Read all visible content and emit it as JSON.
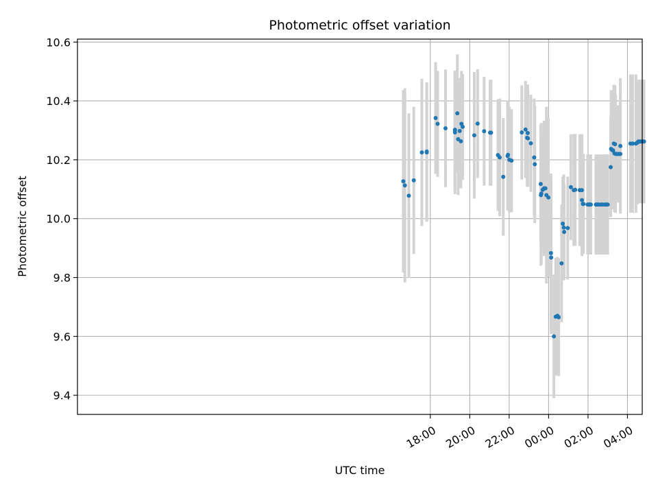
{
  "chart_data": {
    "type": "scatter",
    "title": "Photometric offset variation",
    "xlabel": "UTC time",
    "ylabel": "Photometric offset",
    "x_unit": "hours relative to 00:00 UTC",
    "xlim": [
      -23.9,
      4.75
    ],
    "ylim": [
      9.335,
      10.61
    ],
    "x_ticks": [
      {
        "value": -6,
        "label": "18:00"
      },
      {
        "value": -4,
        "label": "20:00"
      },
      {
        "value": -2,
        "label": "22:00"
      },
      {
        "value": 0,
        "label": "00:00"
      },
      {
        "value": 2,
        "label": "02:00"
      },
      {
        "value": 4,
        "label": "04:00"
      }
    ],
    "y_ticks": [
      {
        "value": 9.4,
        "label": "9.4"
      },
      {
        "value": 9.6,
        "label": "9.6"
      },
      {
        "value": 9.8,
        "label": "9.8"
      },
      {
        "value": 10.0,
        "label": "10.0"
      },
      {
        "value": 10.2,
        "label": "10.2"
      },
      {
        "value": 10.4,
        "label": "10.4"
      },
      {
        "value": 10.6,
        "label": "10.6"
      }
    ],
    "grid": true,
    "marker_color": "#1f77b4",
    "errorbar_color": "#d3d3d3",
    "points": [
      [
        -7.37,
        10.127,
        0.31
      ],
      [
        -7.29,
        10.113,
        0.33
      ],
      [
        -7.09,
        10.078,
        0.28
      ],
      [
        -6.84,
        10.13,
        0.25
      ],
      [
        -6.43,
        10.225,
        0.25
      ],
      [
        -6.18,
        10.228,
        0.235
      ],
      [
        -6.18,
        10.225,
        0.235
      ],
      [
        -5.73,
        10.342,
        0.19
      ],
      [
        -5.63,
        10.322,
        0.18
      ],
      [
        -5.23,
        10.307,
        0.2
      ],
      [
        -4.75,
        10.302,
        0.2
      ],
      [
        -4.75,
        10.293,
        0.21
      ],
      [
        -4.63,
        10.358,
        0.2
      ],
      [
        -4.59,
        10.27,
        0.19
      ],
      [
        -4.51,
        10.298,
        0.18
      ],
      [
        -4.45,
        10.263,
        0.16
      ],
      [
        -4.42,
        10.322,
        0.18
      ],
      [
        -4.36,
        10.312,
        0.18
      ],
      [
        -3.77,
        10.283,
        0.215
      ],
      [
        -3.6,
        10.323,
        0.185
      ],
      [
        -3.27,
        10.297,
        0.185
      ],
      [
        -2.97,
        10.292,
        0.18
      ],
      [
        -2.92,
        10.292,
        0.18
      ],
      [
        -2.57,
        10.216,
        0.19
      ],
      [
        -2.48,
        10.208,
        0.2
      ],
      [
        -2.3,
        10.142,
        0.2
      ],
      [
        -2.08,
        10.213,
        0.185
      ],
      [
        -2.06,
        10.217,
        0.185
      ],
      [
        -1.99,
        10.2,
        0.18
      ],
      [
        -1.88,
        10.197,
        0.175
      ],
      [
        -1.36,
        10.293,
        0.16
      ],
      [
        -1.17,
        10.303,
        0.165
      ],
      [
        -1.09,
        10.275,
        0.165
      ],
      [
        -1.06,
        10.291,
        0.165
      ],
      [
        -1.05,
        10.273,
        0.165
      ],
      [
        -0.9,
        10.256,
        0.165
      ],
      [
        -0.73,
        10.208,
        0.2
      ],
      [
        -0.7,
        10.185,
        0.2
      ],
      [
        -0.4,
        10.118,
        0.2
      ],
      [
        -0.39,
        10.08,
        0.24
      ],
      [
        -0.37,
        10.085,
        0.24
      ],
      [
        -0.3,
        10.098,
        0.195
      ],
      [
        -0.23,
        10.103,
        0.23
      ],
      [
        -0.16,
        10.103,
        0.22
      ],
      [
        -0.11,
        10.08,
        0.3
      ],
      [
        -0.01,
        10.072,
        0.27
      ],
      [
        0.12,
        9.883,
        0.27
      ],
      [
        0.13,
        9.868,
        0.26
      ],
      [
        0.27,
        9.6,
        0.21
      ],
      [
        0.36,
        9.667,
        0.2
      ],
      [
        0.45,
        9.67,
        0.2
      ],
      [
        0.51,
        9.665,
        0.2
      ],
      [
        0.66,
        9.848,
        0.2
      ],
      [
        0.72,
        9.983,
        0.16
      ],
      [
        0.77,
        9.97,
        0.18
      ],
      [
        0.79,
        9.955,
        0.16
      ],
      [
        0.97,
        9.968,
        0.175
      ],
      [
        1.13,
        10.107,
        0.18
      ],
      [
        1.28,
        10.097,
        0.19
      ],
      [
        1.35,
        10.098,
        0.19
      ],
      [
        1.58,
        10.097,
        0.19
      ],
      [
        1.69,
        10.097,
        0.19
      ],
      [
        1.69,
        10.063,
        0.19
      ],
      [
        1.74,
        10.05,
        0.17
      ],
      [
        1.77,
        10.05,
        0.17
      ],
      [
        1.98,
        10.048,
        0.17
      ],
      [
        2.04,
        10.048,
        0.17
      ],
      [
        2.07,
        10.048,
        0.17
      ],
      [
        2.1,
        10.048,
        0.17
      ],
      [
        2.14,
        10.048,
        0.17
      ],
      [
        2.4,
        10.048,
        0.17
      ],
      [
        2.45,
        10.048,
        0.17
      ],
      [
        2.5,
        10.048,
        0.17
      ],
      [
        2.55,
        10.048,
        0.17
      ],
      [
        2.66,
        10.048,
        0.17
      ],
      [
        2.72,
        10.048,
        0.17
      ],
      [
        2.83,
        10.048,
        0.17
      ],
      [
        2.9,
        10.048,
        0.17
      ],
      [
        2.95,
        10.048,
        0.17
      ],
      [
        3.0,
        10.048,
        0.17
      ],
      [
        3.15,
        10.175,
        0.17
      ],
      [
        3.17,
        10.237,
        0.2
      ],
      [
        3.22,
        10.233,
        0.2
      ],
      [
        3.27,
        10.232,
        0.2
      ],
      [
        3.31,
        10.255,
        0.2
      ],
      [
        3.34,
        10.222,
        0.2
      ],
      [
        3.37,
        10.253,
        0.2
      ],
      [
        3.4,
        10.22,
        0.2
      ],
      [
        3.45,
        10.22,
        0.165
      ],
      [
        3.52,
        10.22,
        0.165
      ],
      [
        3.56,
        10.22,
        0.165
      ],
      [
        3.64,
        10.22,
        0.2
      ],
      [
        3.64,
        10.247,
        0.23
      ],
      [
        4.15,
        10.255,
        0.235
      ],
      [
        4.26,
        10.255,
        0.235
      ],
      [
        4.43,
        10.255,
        0.235
      ],
      [
        4.5,
        10.258,
        0.21
      ],
      [
        4.55,
        10.262,
        0.21
      ],
      [
        4.6,
        10.262,
        0.21
      ],
      [
        4.65,
        10.262,
        0.21
      ],
      [
        4.72,
        10.262,
        0.21
      ],
      [
        4.79,
        10.262,
        0.21
      ],
      [
        4.84,
        10.262,
        0.21
      ]
    ]
  }
}
